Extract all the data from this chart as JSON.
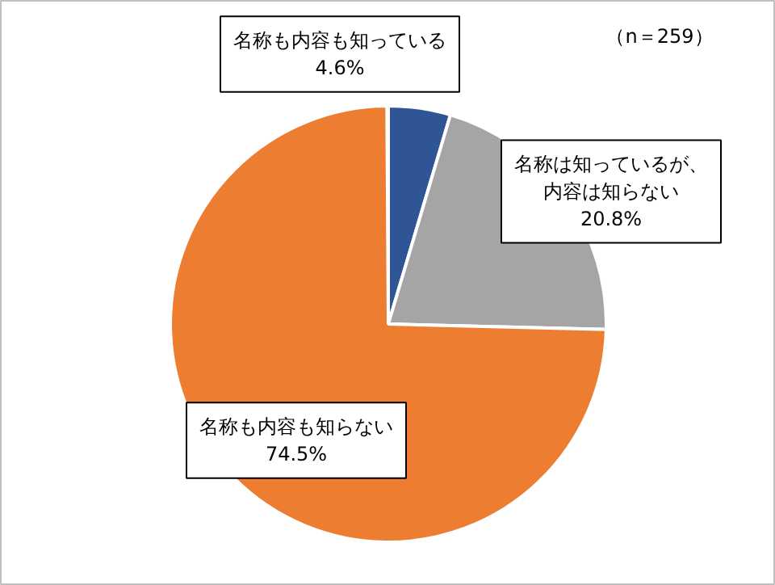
{
  "chart_data": {
    "type": "pie",
    "categories": [
      "名称も内容も知っている",
      "名称は知っているが、内容は知らない",
      "名称も内容も知らない"
    ],
    "values": [
      4.6,
      20.8,
      74.5
    ],
    "colors": [
      "#2f5597",
      "#a5a5a5",
      "#ed7d31"
    ],
    "value_labels": [
      "4.6%",
      "20.8%",
      "74.5%"
    ],
    "annotations": [
      "（n＝259）"
    ]
  }
}
